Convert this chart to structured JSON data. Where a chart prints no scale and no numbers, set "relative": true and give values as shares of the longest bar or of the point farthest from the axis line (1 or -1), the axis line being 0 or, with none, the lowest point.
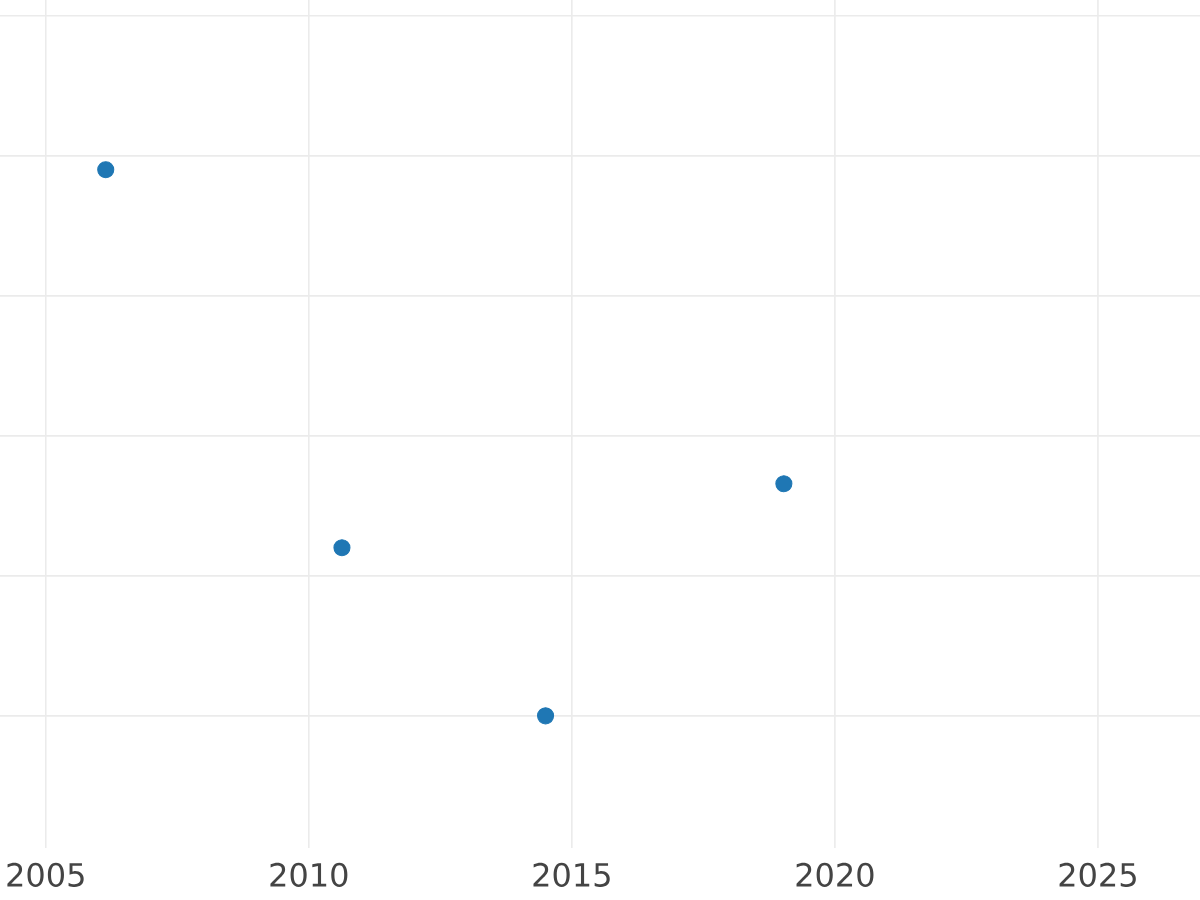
{
  "chart_data": {
    "type": "scatter",
    "relative": true,
    "x": [
      2006.14,
      2010.63,
      2014.5,
      2019.03
    ],
    "values": [
      1,
      0.308,
      0,
      0.425
    ],
    "color": "#1f77b4",
    "marker": "circle",
    "grid": true,
    "tick_labels": "x",
    "xlim": [
      2004.13,
      2026.94
    ],
    "xticks": [
      2005,
      2010,
      2015,
      2020,
      2025
    ]
  }
}
